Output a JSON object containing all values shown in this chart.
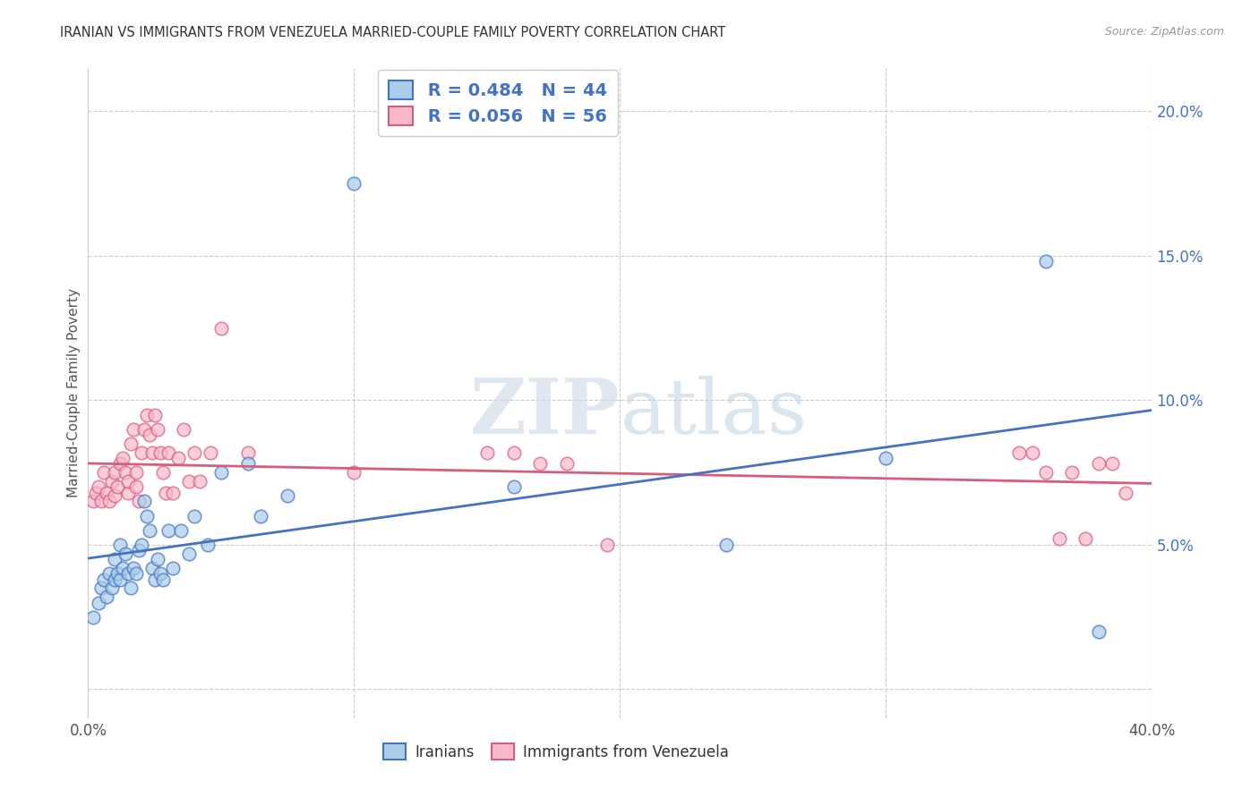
{
  "title": "IRANIAN VS IMMIGRANTS FROM VENEZUELA MARRIED-COUPLE FAMILY POVERTY CORRELATION CHART",
  "source": "Source: ZipAtlas.com",
  "ylabel": "Married-Couple Family Poverty",
  "xlim": [
    0.0,
    0.4
  ],
  "ylim": [
    -0.01,
    0.215
  ],
  "x_ticks": [
    0.0,
    0.1,
    0.2,
    0.3,
    0.4
  ],
  "x_tick_labels": [
    "0.0%",
    "",
    "",
    "",
    "40.0%"
  ],
  "y_ticks": [
    0.0,
    0.05,
    0.1,
    0.15,
    0.2
  ],
  "y_tick_labels": [
    "",
    "5.0%",
    "10.0%",
    "15.0%",
    "20.0%"
  ],
  "grid_color": "#cccccc",
  "background_color": "#ffffff",
  "color_iranian": "#aacde8",
  "color_venezuela": "#f9b8cb",
  "line_color_iranian": "#4472c4",
  "line_color_venezuela": "#d45f7a",
  "R_iranian": 0.484,
  "N_iranian": 44,
  "R_venezuela": 0.056,
  "N_venezuela": 56,
  "iranians_x": [
    0.002,
    0.004,
    0.005,
    0.006,
    0.007,
    0.008,
    0.009,
    0.01,
    0.01,
    0.011,
    0.012,
    0.012,
    0.013,
    0.014,
    0.015,
    0.016,
    0.017,
    0.018,
    0.019,
    0.02,
    0.021,
    0.022,
    0.023,
    0.024,
    0.025,
    0.026,
    0.027,
    0.028,
    0.03,
    0.032,
    0.035,
    0.038,
    0.04,
    0.045,
    0.05,
    0.06,
    0.065,
    0.075,
    0.1,
    0.16,
    0.24,
    0.3,
    0.36,
    0.38
  ],
  "iranians_y": [
    0.025,
    0.03,
    0.035,
    0.038,
    0.032,
    0.04,
    0.035,
    0.038,
    0.045,
    0.04,
    0.038,
    0.05,
    0.042,
    0.047,
    0.04,
    0.035,
    0.042,
    0.04,
    0.048,
    0.05,
    0.065,
    0.06,
    0.055,
    0.042,
    0.038,
    0.045,
    0.04,
    0.038,
    0.055,
    0.042,
    0.055,
    0.047,
    0.06,
    0.05,
    0.075,
    0.078,
    0.06,
    0.067,
    0.175,
    0.07,
    0.05,
    0.08,
    0.148,
    0.02
  ],
  "venezuela_x": [
    0.002,
    0.003,
    0.004,
    0.005,
    0.006,
    0.007,
    0.008,
    0.009,
    0.01,
    0.01,
    0.011,
    0.012,
    0.013,
    0.014,
    0.015,
    0.015,
    0.016,
    0.017,
    0.018,
    0.018,
    0.019,
    0.02,
    0.021,
    0.022,
    0.023,
    0.024,
    0.025,
    0.026,
    0.027,
    0.028,
    0.029,
    0.03,
    0.032,
    0.034,
    0.036,
    0.038,
    0.04,
    0.042,
    0.046,
    0.05,
    0.06,
    0.1,
    0.15,
    0.16,
    0.17,
    0.18,
    0.195,
    0.35,
    0.355,
    0.36,
    0.365,
    0.37,
    0.375,
    0.38,
    0.385,
    0.39
  ],
  "venezuela_y": [
    0.065,
    0.068,
    0.07,
    0.065,
    0.075,
    0.068,
    0.065,
    0.072,
    0.067,
    0.075,
    0.07,
    0.078,
    0.08,
    0.075,
    0.068,
    0.072,
    0.085,
    0.09,
    0.07,
    0.075,
    0.065,
    0.082,
    0.09,
    0.095,
    0.088,
    0.082,
    0.095,
    0.09,
    0.082,
    0.075,
    0.068,
    0.082,
    0.068,
    0.08,
    0.09,
    0.072,
    0.082,
    0.072,
    0.082,
    0.125,
    0.082,
    0.075,
    0.082,
    0.082,
    0.078,
    0.078,
    0.05,
    0.082,
    0.082,
    0.075,
    0.052,
    0.075,
    0.052,
    0.078,
    0.078,
    0.068
  ]
}
